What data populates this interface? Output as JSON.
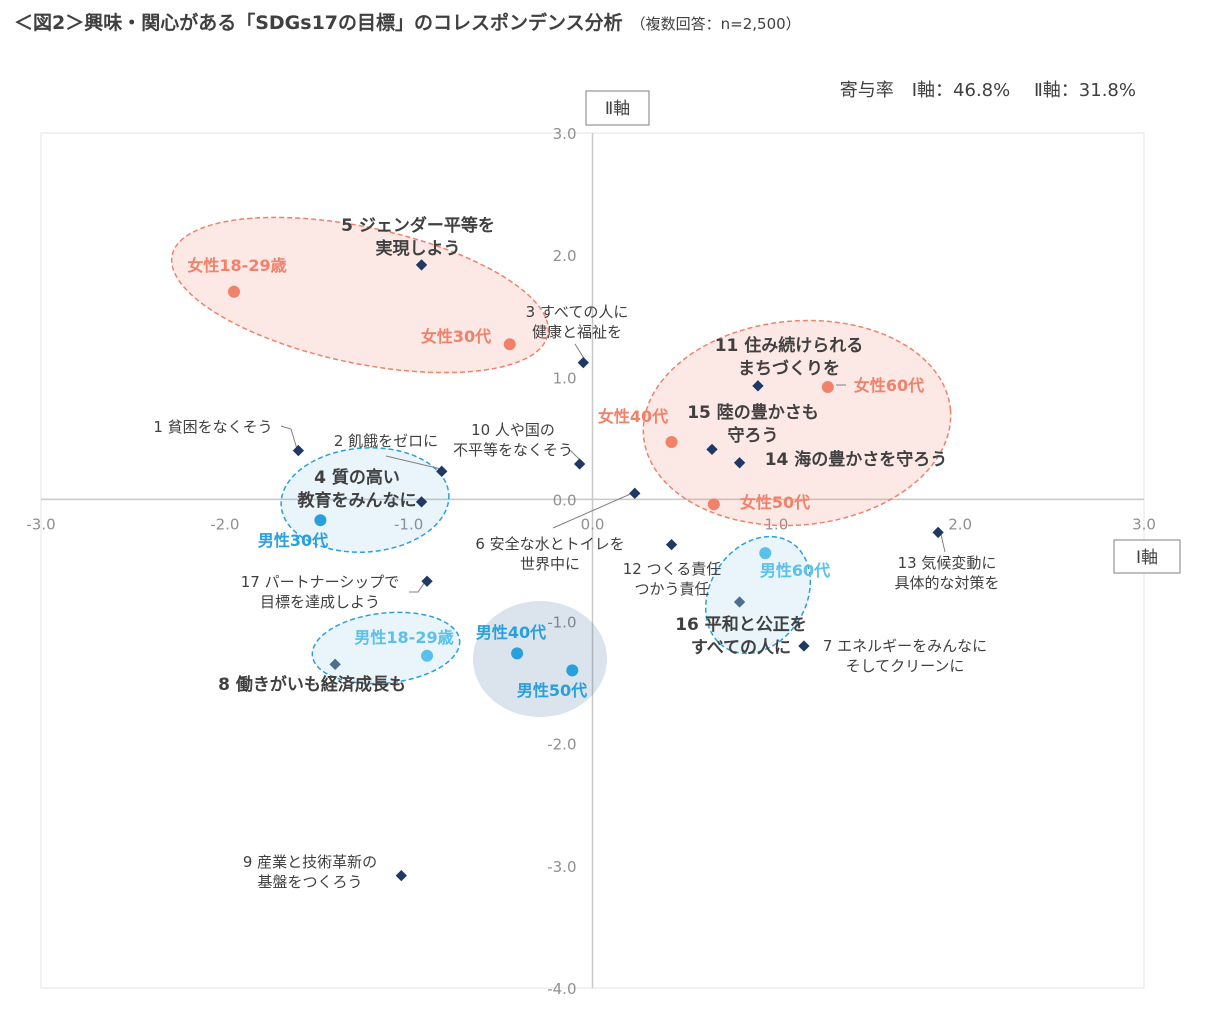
{
  "header": {
    "title": "＜図2＞興味・関心がある「SDGs17の目標」のコレスポンデンス分析",
    "subtitle": "（複数回答：n=2,500）",
    "contribution": "寄与率　Ⅰ軸：46.8%　 Ⅱ軸：31.8%"
  },
  "chart_data": {
    "type": "scatter",
    "xlabel": "Ⅰ軸",
    "ylabel": "Ⅱ軸",
    "xlim": [
      -3.0,
      3.0
    ],
    "ylim": [
      -4.0,
      3.0
    ],
    "xticks": [
      -3.0,
      -2.0,
      -1.0,
      0.0,
      1.0,
      2.0,
      3.0
    ],
    "yticks": [
      3.0,
      2.0,
      1.0,
      0.0,
      -1.0,
      -2.0,
      -3.0,
      -4.0
    ],
    "tick_labels_x": [
      "-3.0",
      "-2.0",
      "-1.0",
      "0.0",
      "1.0",
      "2.0",
      "3.0"
    ],
    "tick_labels_y": [
      "3.0",
      "2.0",
      "1.0",
      "0.0",
      "-1.0",
      "-2.0",
      "-3.0",
      "-4.0"
    ],
    "colors": {
      "female": "#f0826b",
      "male": "#29a0dc",
      "goal": "#1f3864",
      "goal_light": "#4d6f8f"
    },
    "series": [
      {
        "group": "goals",
        "points": [
          {
            "label": "1 貧困をなくそう",
            "x": -1.6,
            "y": 0.4,
            "style": "normal"
          },
          {
            "label": "2 飢餓をゼロに",
            "x": -0.82,
            "y": 0.23,
            "style": "normal"
          },
          {
            "label": "3 すべての人に\n健康と福祉を",
            "x": -0.05,
            "y": 1.12,
            "style": "normal"
          },
          {
            "label": "4 質の高い\n教育をみんなに",
            "x": -0.93,
            "y": -0.02,
            "style": "bold"
          },
          {
            "label": "5 ジェンダー平等を\n実現しよう",
            "x": -0.93,
            "y": 1.92,
            "style": "bold"
          },
          {
            "label": "6 安全な水とトイレを\n世界中に",
            "x": 0.23,
            "y": 0.05,
            "style": "normal"
          },
          {
            "label": "7 エネルギーをみんなに\nそしてクリーンに",
            "x": 1.15,
            "y": -1.2,
            "style": "normal"
          },
          {
            "label": "8 働きがいも経済成長も",
            "x": -1.4,
            "y": -1.35,
            "style": "bold"
          },
          {
            "label": "9 産業と技術革新の\n基盤をつくろう",
            "x": -1.04,
            "y": -3.08,
            "style": "normal"
          },
          {
            "label": "10 人や国の\n不平等をなくそう",
            "x": -0.07,
            "y": 0.29,
            "style": "normal"
          },
          {
            "label": "11 住み続けられる\nまちづくりを",
            "x": 0.9,
            "y": 0.93,
            "style": "bold"
          },
          {
            "label": "12 つくる責任\nつかう責任",
            "x": 0.43,
            "y": -0.37,
            "style": "normal"
          },
          {
            "label": "13 気候変動に\n具体的な対策を",
            "x": 1.88,
            "y": -0.27,
            "style": "normal"
          },
          {
            "label": "14 海の豊かさを守ろう",
            "x": 0.8,
            "y": 0.3,
            "style": "bold"
          },
          {
            "label": "15 陸の豊かさも\n守ろう",
            "x": 0.65,
            "y": 0.41,
            "style": "bold"
          },
          {
            "label": "16 平和と公正を\nすべての人に",
            "x": 0.8,
            "y": -0.84,
            "style": "bold"
          },
          {
            "label": "17 パートナーシップで\n目標を達成しよう",
            "x": -0.9,
            "y": -0.67,
            "style": "normal"
          }
        ]
      },
      {
        "group": "female",
        "points": [
          {
            "label": "女性18-29歳",
            "x": -1.95,
            "y": 1.7
          },
          {
            "label": "女性30代",
            "x": -0.45,
            "y": 1.27
          },
          {
            "label": "女性40代",
            "x": 0.43,
            "y": 0.47
          },
          {
            "label": "女性50代",
            "x": 0.66,
            "y": -0.04
          },
          {
            "label": "女性60代",
            "x": 1.28,
            "y": 0.92
          }
        ]
      },
      {
        "group": "male",
        "points": [
          {
            "label": "男性18-29歳",
            "x": -0.9,
            "y": -1.28
          },
          {
            "label": "男性30代",
            "x": -1.48,
            "y": -0.17
          },
          {
            "label": "男性40代",
            "x": -0.41,
            "y": -1.26
          },
          {
            "label": "男性50代",
            "x": -0.11,
            "y": -1.4
          },
          {
            "label": "男性60代",
            "x": 0.94,
            "y": -0.44
          }
        ]
      }
    ],
    "clusters": [
      {
        "color": "female",
        "members": [
          "女性18-29歳",
          "女性30代",
          "5 ジェンダー平等を実現しよう"
        ]
      },
      {
        "color": "female",
        "members": [
          "女性40代",
          "女性50代",
          "女性60代",
          "11",
          "14",
          "15"
        ]
      },
      {
        "color": "male",
        "members": [
          "男性30代",
          "4 質の高い教育をみんなに"
        ]
      },
      {
        "color": "male",
        "members": [
          "男性18-29歳",
          "8 働きがいも経済成長も"
        ]
      },
      {
        "color": "male",
        "members": [
          "男性40代",
          "男性50代"
        ]
      },
      {
        "color": "male",
        "members": [
          "男性60代",
          "16 平和と公正をすべての人に"
        ]
      }
    ]
  }
}
